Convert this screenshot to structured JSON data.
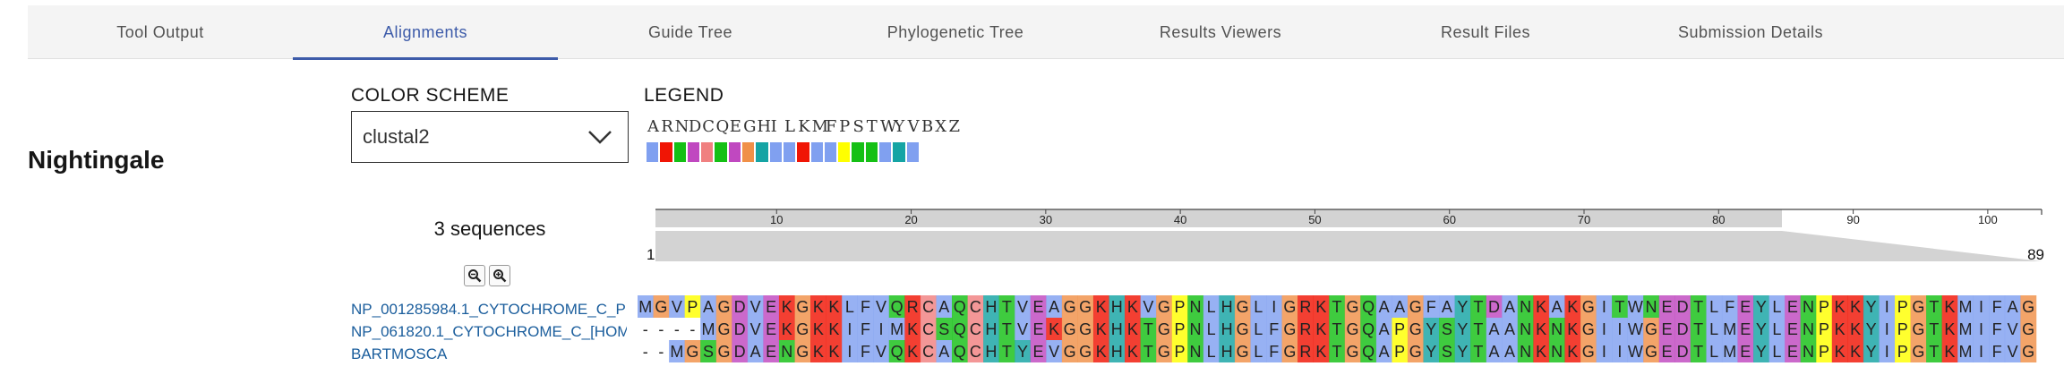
{
  "tabs": [
    {
      "label": "Tool Output",
      "active": false
    },
    {
      "label": "Alignments",
      "active": true
    },
    {
      "label": "Guide Tree",
      "active": false
    },
    {
      "label": "Phylogenetic Tree",
      "active": false
    },
    {
      "label": "Results Viewers",
      "active": false
    },
    {
      "label": "Result Files",
      "active": false
    },
    {
      "label": "Submission Details",
      "active": false
    }
  ],
  "page_title": "Nightingale",
  "color_scheme": {
    "label": "COLOR SCHEME",
    "selected": "clustal2"
  },
  "legend": {
    "label": "LEGEND",
    "letters": [
      "A",
      "R",
      "N",
      "D",
      "C",
      "Q",
      "E",
      "G",
      "H",
      "I",
      "L",
      "K",
      "M",
      "F",
      "P",
      "S",
      "T",
      "W",
      "Y",
      "V",
      "B",
      "X",
      "Z"
    ],
    "colors": [
      "#80a0f0",
      "#f01505",
      "#15c015",
      "#c048c0",
      "#f08080",
      "#15c015",
      "#c048c0",
      "#f09048",
      "#15a4a4",
      "#80a0f0",
      "#80a0f0",
      "#f01505",
      "#80a0f0",
      "#80a0f0",
      "#ffff00",
      "#15c015",
      "#15c015",
      "#80a0f0",
      "#15a4a4",
      "#80a0f0"
    ]
  },
  "sequence_count": "3 sequences",
  "navigation": {
    "start": "1",
    "end": "89",
    "ticks": [
      "10",
      "20",
      "30",
      "40",
      "50",
      "60",
      "70",
      "80",
      "90",
      "100"
    ]
  },
  "sequences": [
    {
      "name": "NP_001285984.1_CYTOCHROME_C_P",
      "residues": "MGVPAGDVEKGKKLFVQRCAQCHTVEAGGKHKVGPNLHGLIGRKTGQAAGFAYTDANKAKGITWNEDTLFEYLENPKKYIPGTKMIFAG"
    },
    {
      "name": "NP_061820.1_CYTOCHROME_C_[HOM",
      "residues": "----MGDVEKGKKIFIMKCSQCHTVEKGGKHKTGPNLHGLFGRKTGQAPGYSYTAANKNKGIIWGEDTLMEYLENPKKYIPGTKMIFVG"
    },
    {
      "name": "BARTMOSCA",
      "residues": "--MGSGDAENGKKIFVQKCAQCHTYEVGGKHKTGPNLHGLFGRKTGQAPGYSYTAANKNKGIIWGEDTLMEYLENPKKYIPGTKMIFVG"
    }
  ],
  "residue_colors": {
    "A": "#80a0f0",
    "I": "#80a0f0",
    "L": "#80a0f0",
    "M": "#80a0f0",
    "F": "#80a0f0",
    "W": "#80a0f0",
    "V": "#80a0f0",
    "C": "#f08080",
    "K": "#f01505",
    "R": "#f01505",
    "E": "#c048c0",
    "D": "#c048c0",
    "N": "#15c015",
    "Q": "#15c015",
    "S": "#15c015",
    "T": "#15c015",
    "G": "#f09048",
    "P": "#ffff00",
    "H": "#15a4a4",
    "Y": "#15a4a4"
  }
}
